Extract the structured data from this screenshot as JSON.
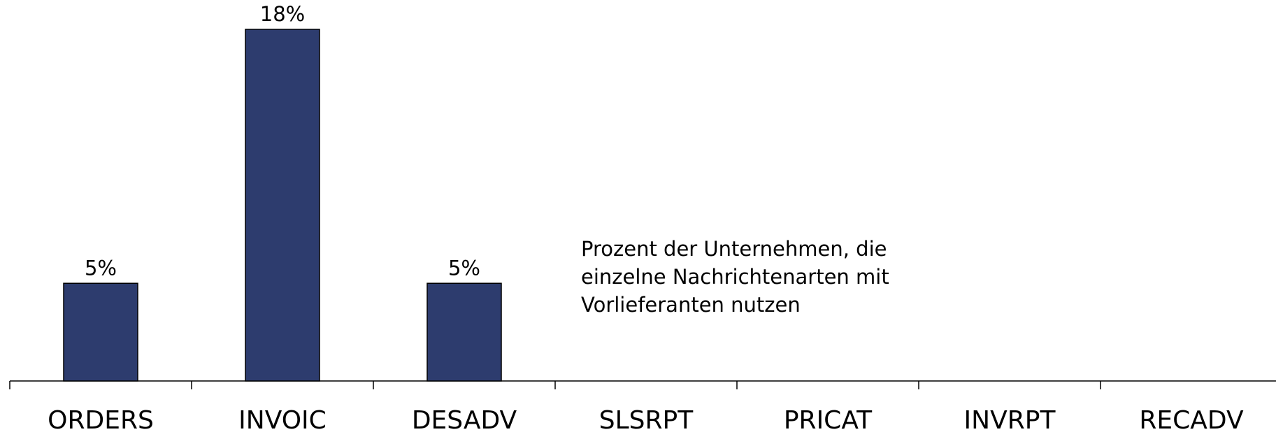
{
  "chart_data": {
    "type": "bar",
    "categories": [
      "ORDERS",
      "INVOIC",
      "DESADV",
      "SLSRPT",
      "PRICAT",
      "INVRPT",
      "RECADV"
    ],
    "values": [
      5,
      18,
      5,
      0,
      0,
      0,
      0
    ],
    "value_labels": [
      "5%",
      "18%",
      "5%",
      null,
      null,
      null,
      null
    ],
    "color": "#2d3c6e",
    "ylim": [
      0,
      19.5
    ],
    "annotation": [
      "Prozent der Unternehmen, die",
      "einzelne Nachrichtenarten mit",
      "Vorlieferanten nutzen"
    ]
  }
}
